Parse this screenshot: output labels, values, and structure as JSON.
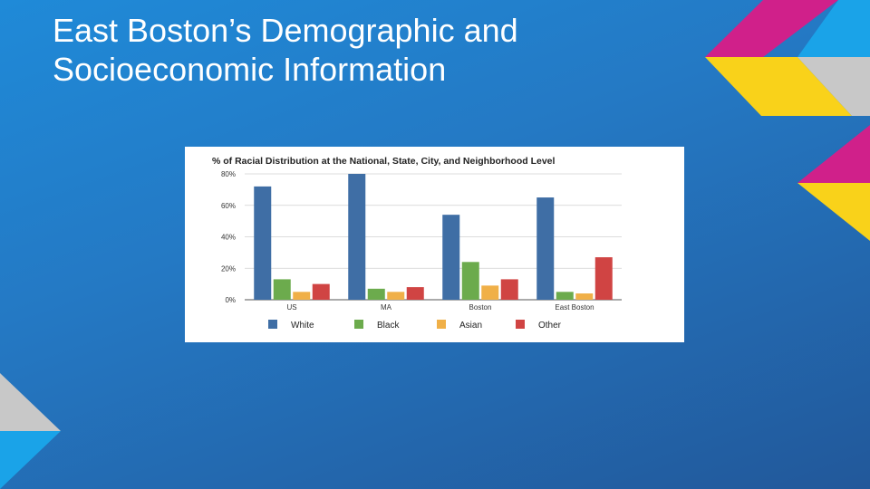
{
  "slide": {
    "title_line1": "East Boston’s Demographic and",
    "title_line2": "Socioeconomic Information"
  },
  "decoration": {
    "colors": {
      "magenta": "#d0208a",
      "yellow": "#f9d21a",
      "sky": "#1aa3e8",
      "silver": "#c8c8c8"
    }
  },
  "chart_data": {
    "type": "bar",
    "title": "% of Racial Distribution at the National, State, City, and Neighborhood Level",
    "xlabel": "",
    "ylabel": "",
    "ylim": [
      0,
      80
    ],
    "y_ticks": [
      "0%",
      "20%",
      "40%",
      "60%",
      "80%"
    ],
    "grid": true,
    "legend_position": "bottom",
    "categories": [
      "US",
      "MA",
      "Boston",
      "East Boston"
    ],
    "series": [
      {
        "name": "White",
        "color": "#3f6ea5",
        "values": [
          72,
          80,
          54,
          65
        ]
      },
      {
        "name": "Black",
        "color": "#6cab4d",
        "values": [
          13,
          7,
          24,
          5
        ]
      },
      {
        "name": "Asian",
        "color": "#f0b048",
        "values": [
          5,
          5,
          9,
          4
        ]
      },
      {
        "name": "Other",
        "color": "#d04443",
        "values": [
          10,
          8,
          13,
          27
        ]
      }
    ]
  }
}
